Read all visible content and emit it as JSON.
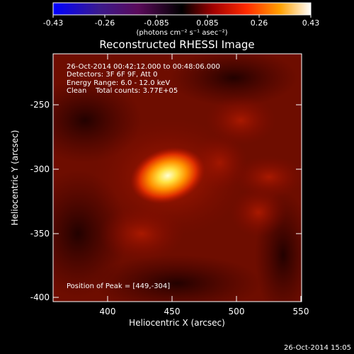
{
  "colorbar": {
    "tick_labels": [
      "-0.43",
      "-0.26",
      "-0.085",
      "0.085",
      "0.26",
      "0.43"
    ],
    "unit_label": "(photons cm⁻² s⁻¹ asec⁻²)",
    "colors": [
      "#0000ff",
      "#3b1a8c",
      "#5a0a5a",
      "#000000",
      "#a00000",
      "#ff2a00",
      "#ffa000",
      "#ffffff"
    ]
  },
  "image": {
    "title": "Reconstructed RHESSI Image",
    "info_lines": [
      "26-Oct-2014 00:42:12.000 to 00:48:06.000",
      "Detectors: 3F 6F 9F, Att 0",
      "Energy Range: 6.0 - 12.0 keV",
      "Clean    Total counts: 3.77E+05"
    ],
    "peak_label": "Position of Peak = [449,-304]",
    "x_axis": {
      "label": "Heliocentric X (arcsec)",
      "ticks": [
        "400",
        "450",
        "500",
        "550"
      ],
      "range": [
        360,
        552
      ]
    },
    "y_axis": {
      "label": "Heliocentric Y (arcsec)",
      "ticks": [
        "-250",
        "-300",
        "-350",
        "-400"
      ],
      "range": [
        -403,
        -212
      ]
    },
    "peak_position": [
      449,
      -304
    ]
  },
  "footer": {
    "timestamp": "26-Oct-2014 15:05"
  }
}
